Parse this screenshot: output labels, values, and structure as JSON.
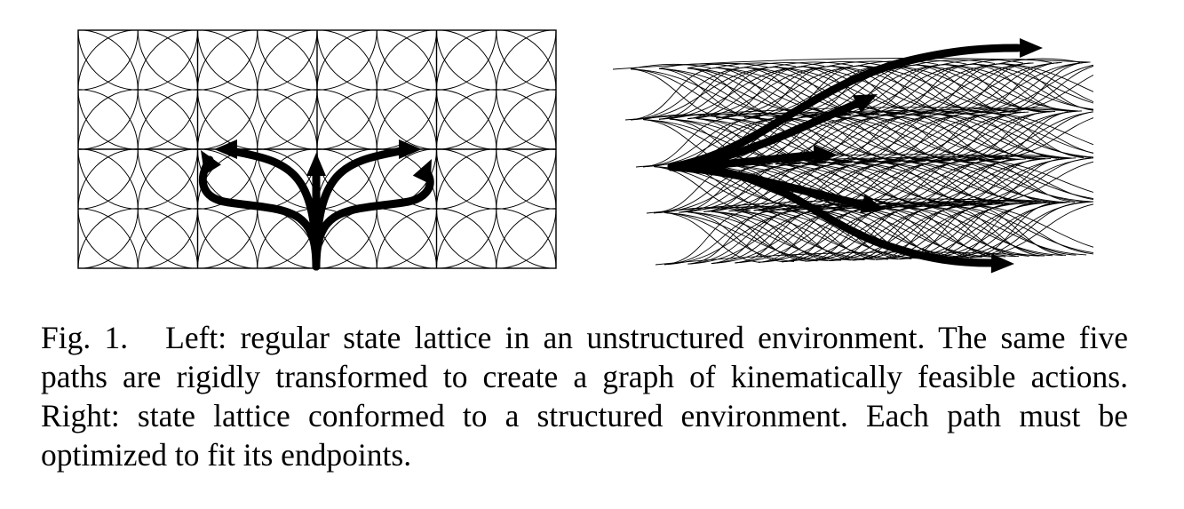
{
  "figure": {
    "label": "Fig. 1.",
    "caption_text": "Left: regular state lattice in an unstructured environment. The same five paths are rigidly transformed to create a graph of kinematically feasible actions. Right: state lattice conformed to a structured environment. Each path must be optimized to fit its endpoints.",
    "panels": [
      {
        "name": "regular-state-lattice",
        "grid_columns": 4,
        "grid_rows": 2,
        "highlighted_paths": 5
      },
      {
        "name": "conformed-state-lattice",
        "highlighted_paths": 5
      }
    ],
    "colors": {
      "ink": "#000000",
      "background": "#ffffff"
    }
  }
}
